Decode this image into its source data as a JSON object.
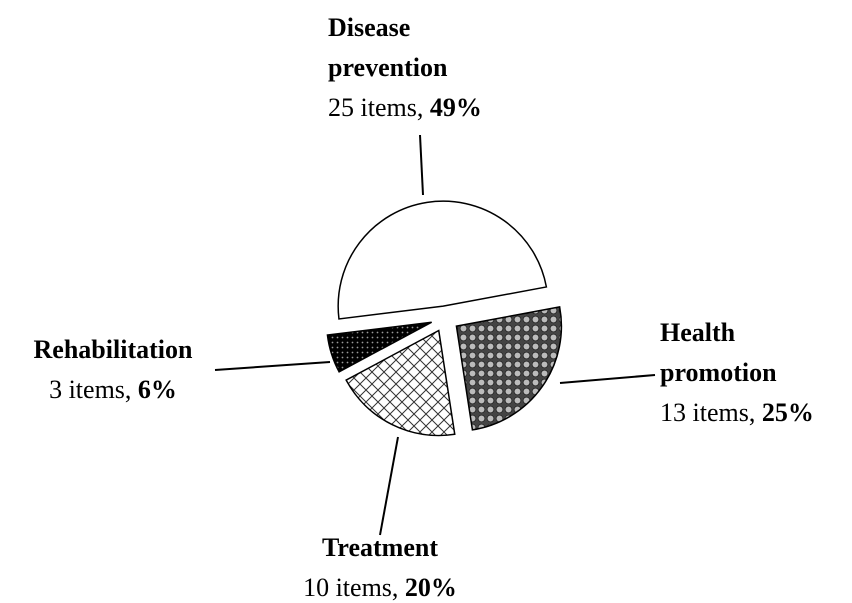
{
  "chart_data": {
    "type": "pie",
    "categories": [
      "Disease prevention",
      "Health promotion",
      "Treatment",
      "Rehabilitation"
    ],
    "values": [
      25,
      13,
      10,
      3
    ],
    "value_labels": [
      "25 items,",
      "13 items,",
      "10 items,",
      "3 items,"
    ],
    "percents": [
      {
        "value": 49,
        "label": "49%"
      },
      {
        "value": 25,
        "label": "25%"
      },
      {
        "value": 20,
        "label": "20%"
      },
      {
        "value": 6,
        "label": "6%"
      }
    ]
  }
}
